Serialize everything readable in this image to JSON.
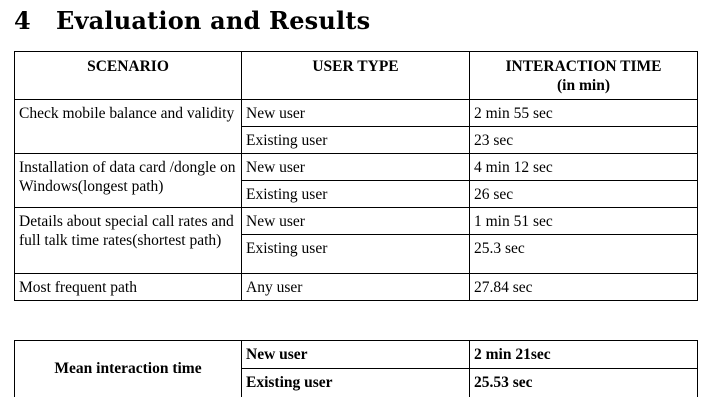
{
  "section": {
    "number": "4",
    "title": "Evaluation and Results"
  },
  "results_table": {
    "headers": [
      "SCENARIO",
      "USER TYPE",
      "INTERACTION TIME",
      "(in min)"
    ],
    "rows": [
      {
        "scenario": "Check mobile balance and validity",
        "entries": [
          {
            "user": "New user",
            "time": "2 min 55 sec"
          },
          {
            "user": "Existing user",
            "time": "23 sec"
          }
        ]
      },
      {
        "scenario": "Installation of data card /dongle on Windows(longest path)",
        "entries": [
          {
            "user": "New user",
            "time": "4 min 12 sec"
          },
          {
            "user": "Existing user",
            "time": "26 sec"
          }
        ]
      },
      {
        "scenario": "Details about special call rates and full talk time rates(shortest path)",
        "entries": [
          {
            "user": "New user",
            "time": "1 min 51 sec"
          },
          {
            "user": "Existing user",
            "time": "25.3 sec"
          }
        ]
      },
      {
        "scenario": "Most frequent path",
        "entries": [
          {
            "user": "Any user",
            "time": "27.84 sec"
          }
        ]
      }
    ]
  },
  "mean_table": {
    "label": "Mean interaction time",
    "rows": [
      {
        "user": "New user",
        "time": "2 min 21sec"
      },
      {
        "user": "Existing user",
        "time": "25.53 sec"
      }
    ]
  }
}
